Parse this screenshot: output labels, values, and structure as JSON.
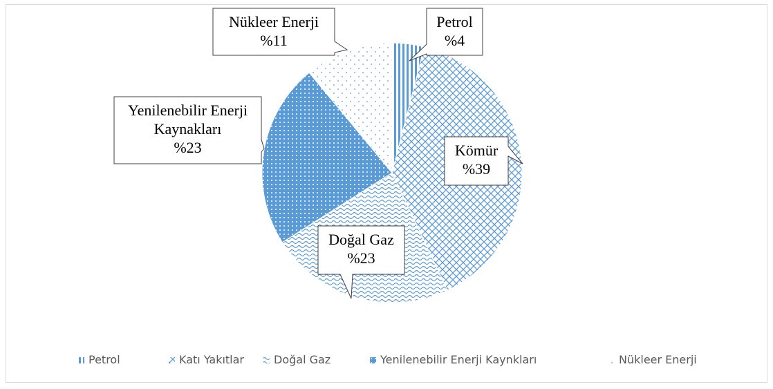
{
  "chart_data": {
    "type": "pie",
    "categories": [
      "Petrol",
      "Katı Yakıtlar",
      "Doğal Gaz",
      "Yenilenebilir Enerji Kaynkları",
      "Nükleer Enerji"
    ],
    "label_names": [
      "Petrol",
      "Kömür",
      "Doğal Gaz",
      "Yenilenebilir Enerji Kaynakları",
      "Nükleer Enerji"
    ],
    "values": [
      4,
      39,
      23,
      23,
      11
    ],
    "value_labels": [
      "%4",
      "%39",
      "%23",
      "%23",
      "%11"
    ],
    "color": "#5b9bd5",
    "legend": "bottom"
  }
}
